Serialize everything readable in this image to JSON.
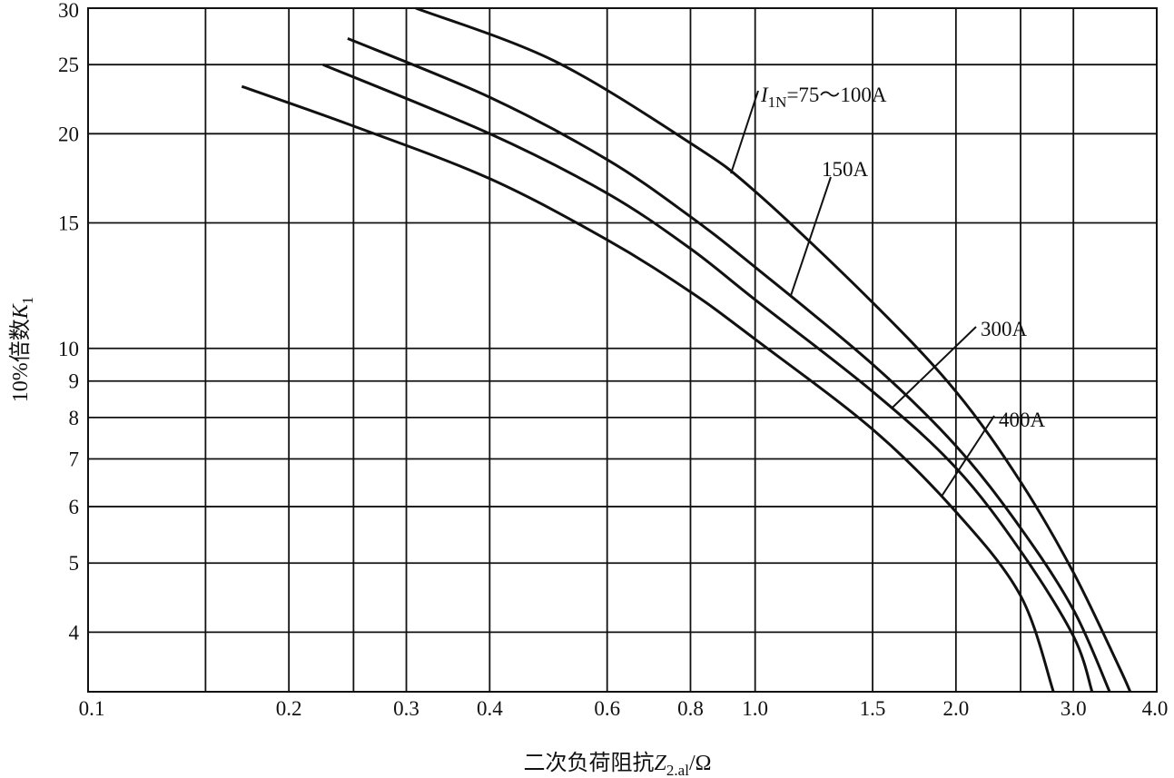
{
  "chart_data": {
    "type": "line",
    "xlabel": {
      "prefix": "二次负荷阻抗",
      "var": "Z",
      "sub": "2.al",
      "suffix": "/Ω"
    },
    "ylabel": {
      "prefix": "10%倍数",
      "var": "K",
      "sub": "1"
    },
    "x_scale": "log",
    "y_scale": "log",
    "xlim": [
      0.1,
      4.0
    ],
    "ylim": [
      3.3,
      30
    ],
    "grid": true,
    "legend": "none",
    "x_ticks": [
      {
        "value": 0.1,
        "label": "0.1"
      },
      {
        "value": 0.2,
        "label": "0.2"
      },
      {
        "value": 0.3,
        "label": "0.3"
      },
      {
        "value": 0.4,
        "label": "0.4"
      },
      {
        "value": 0.6,
        "label": "0.6"
      },
      {
        "value": 0.8,
        "label": "0.8"
      },
      {
        "value": 1.0,
        "label": "1.0"
      },
      {
        "value": 1.5,
        "label": "1.5"
      },
      {
        "value": 2.0,
        "label": "2.0"
      },
      {
        "value": 3.0,
        "label": "3.0"
      },
      {
        "value": 4.0,
        "label": "4.0"
      }
    ],
    "x_gridlines": [
      0.1,
      0.15,
      0.2,
      0.25,
      0.3,
      0.4,
      0.6,
      0.8,
      1.0,
      1.5,
      2.0,
      2.5,
      3.0,
      4.0
    ],
    "y_ticks": [
      {
        "value": 4,
        "label": "4"
      },
      {
        "value": 5,
        "label": "5"
      },
      {
        "value": 6,
        "label": "6"
      },
      {
        "value": 7,
        "label": "7"
      },
      {
        "value": 8,
        "label": "8"
      },
      {
        "value": 9,
        "label": "9"
      },
      {
        "value": 10,
        "label": "10"
      },
      {
        "value": 15,
        "label": "15"
      },
      {
        "value": 20,
        "label": "20"
      },
      {
        "value": 25,
        "label": "25"
      },
      {
        "value": 30,
        "label": "30"
      }
    ],
    "series": [
      {
        "name": "I1N=75～100A",
        "label": {
          "var": "I",
          "sub": "1N",
          "rest": "=75～100A"
        },
        "callout_at": 0.92,
        "points": [
          [
            0.31,
            30
          ],
          [
            0.5,
            25.3
          ],
          [
            0.8,
            19.4
          ],
          [
            1.0,
            16.6
          ],
          [
            1.5,
            11.6
          ],
          [
            2.0,
            8.7
          ],
          [
            2.5,
            6.5
          ],
          [
            3.0,
            4.85
          ],
          [
            3.5,
            3.6
          ],
          [
            3.65,
            3.3
          ]
        ]
      },
      {
        "name": "150A",
        "callout_at": 1.13,
        "points": [
          [
            0.245,
            27.2
          ],
          [
            0.4,
            22.5
          ],
          [
            0.6,
            18.4
          ],
          [
            0.8,
            15.3
          ],
          [
            1.0,
            13.0
          ],
          [
            1.5,
            9.5
          ],
          [
            2.0,
            7.3
          ],
          [
            2.5,
            5.6
          ],
          [
            3.0,
            4.3
          ],
          [
            3.4,
            3.3
          ]
        ]
      },
      {
        "name": "300A",
        "callout_at": 1.6,
        "points": [
          [
            0.225,
            25.0
          ],
          [
            0.4,
            20.0
          ],
          [
            0.6,
            16.5
          ],
          [
            0.8,
            13.8
          ],
          [
            1.0,
            11.7
          ],
          [
            1.5,
            8.7
          ],
          [
            2.0,
            6.8
          ],
          [
            2.5,
            5.2
          ],
          [
            3.0,
            3.95
          ],
          [
            3.2,
            3.3
          ]
        ]
      },
      {
        "name": "400A",
        "callout_at": 1.9,
        "points": [
          [
            0.17,
            23.3
          ],
          [
            0.25,
            20.5
          ],
          [
            0.4,
            17.3
          ],
          [
            0.6,
            14.2
          ],
          [
            0.8,
            12.0
          ],
          [
            1.0,
            10.3
          ],
          [
            1.5,
            7.7
          ],
          [
            2.0,
            5.9
          ],
          [
            2.5,
            4.5
          ],
          [
            2.8,
            3.3
          ]
        ]
      }
    ]
  }
}
